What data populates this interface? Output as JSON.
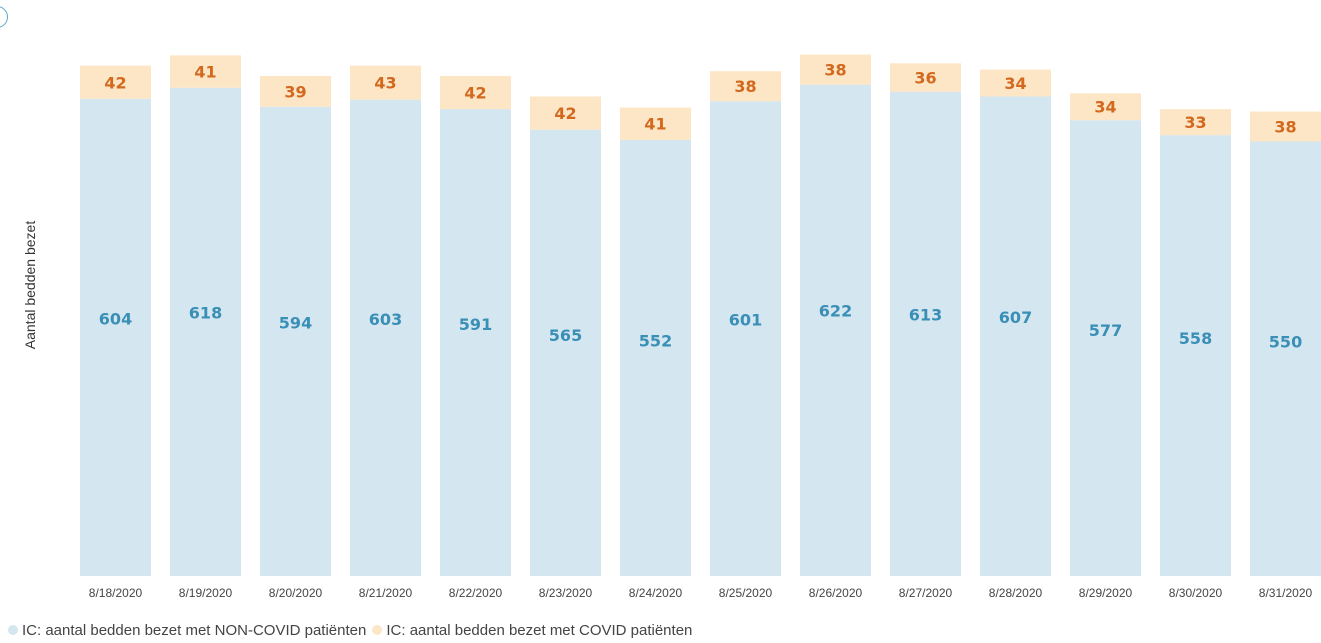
{
  "chart_data": {
    "type": "bar",
    "stacked": true,
    "title": "",
    "xlabel": "",
    "ylabel": "Aantal bedden bezet",
    "categories": [
      "8/18/2020",
      "8/19/2020",
      "8/20/2020",
      "8/21/2020",
      "8/22/2020",
      "8/23/2020",
      "8/24/2020",
      "8/25/2020",
      "8/26/2020",
      "8/27/2020",
      "8/28/2020",
      "8/29/2020",
      "8/30/2020",
      "8/31/2020"
    ],
    "series": [
      {
        "name": "IC: aantal bedden bezet met NON-COVID patiënten",
        "color": "#d4e6ef",
        "label_color": "#3a8fb7",
        "values": [
          604,
          618,
          594,
          603,
          591,
          565,
          552,
          601,
          622,
          613,
          607,
          577,
          558,
          550
        ]
      },
      {
        "name": "IC: aantal bedden bezet met COVID patiënten",
        "color": "#fde6c6",
        "label_color": "#d2691e",
        "values": [
          42,
          41,
          39,
          43,
          42,
          42,
          41,
          38,
          38,
          36,
          34,
          34,
          33,
          38
        ]
      }
    ],
    "ylim": [
      0,
      660
    ],
    "grid": false,
    "legend": "bottom-left"
  }
}
